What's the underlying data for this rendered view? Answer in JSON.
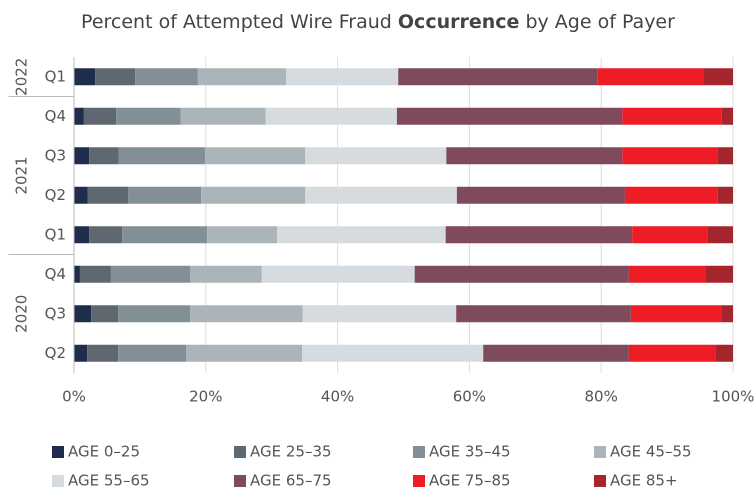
{
  "chart_data": {
    "type": "stacked_barh",
    "title": {
      "before": "Percent of Attempted Wire Fraud ",
      "bold": "Occurrence",
      "after": " by Age of Payer"
    },
    "groups": [
      {
        "label": "2022",
        "categories": [
          "Q1"
        ]
      },
      {
        "label": "2021",
        "categories": [
          "Q4",
          "Q3",
          "Q2",
          "Q1"
        ]
      },
      {
        "label": "2020",
        "categories": [
          "Q4",
          "Q3",
          "Q2"
        ]
      }
    ],
    "series": [
      {
        "name": "AGE 0–25",
        "color": "#1f2d4d",
        "values": [
          3.2,
          1.5,
          2.3,
          2.1,
          2.3,
          0.9,
          2.6,
          2.0
        ]
      },
      {
        "name": "AGE 25–35",
        "color": "#5f6870",
        "values": [
          6.1,
          4.9,
          4.5,
          6.1,
          5.0,
          4.7,
          4.1,
          4.7
        ]
      },
      {
        "name": "AGE 35–45",
        "color": "#838f97",
        "values": [
          9.5,
          9.8,
          13.1,
          11.1,
          12.9,
          12.0,
          10.9,
          10.3
        ]
      },
      {
        "name": "AGE 45–55",
        "color": "#abb4b9",
        "values": [
          13.4,
          12.9,
          15.2,
          15.8,
          10.6,
          10.9,
          17.1,
          17.6
        ]
      },
      {
        "name": "AGE 55–65",
        "color": "#d5dbdf",
        "values": [
          17.0,
          19.9,
          21.4,
          23.0,
          25.6,
          23.2,
          23.3,
          27.5
        ]
      },
      {
        "name": "AGE 65–75",
        "color": "#7e4a5c",
        "values": [
          30.2,
          34.2,
          26.7,
          25.5,
          28.3,
          32.5,
          26.5,
          22.1
        ]
      },
      {
        "name": "AGE 75–85",
        "color": "#ee1c25",
        "values": [
          16.2,
          15.1,
          14.4,
          14.1,
          11.4,
          11.7,
          13.7,
          13.1
        ]
      },
      {
        "name": "AGE 85+",
        "color": "#a4262c",
        "values": [
          4.4,
          1.7,
          2.4,
          2.3,
          3.9,
          4.1,
          1.8,
          2.7
        ]
      }
    ],
    "xlim": [
      0,
      100
    ],
    "xticks": [
      {
        "value": 0,
        "label": "0%"
      },
      {
        "value": 20,
        "label": "20%"
      },
      {
        "value": 40,
        "label": "40%"
      },
      {
        "value": 60,
        "label": "60%"
      },
      {
        "value": 80,
        "label": "80%"
      },
      {
        "value": 100,
        "label": "100%"
      }
    ],
    "grid": true
  }
}
